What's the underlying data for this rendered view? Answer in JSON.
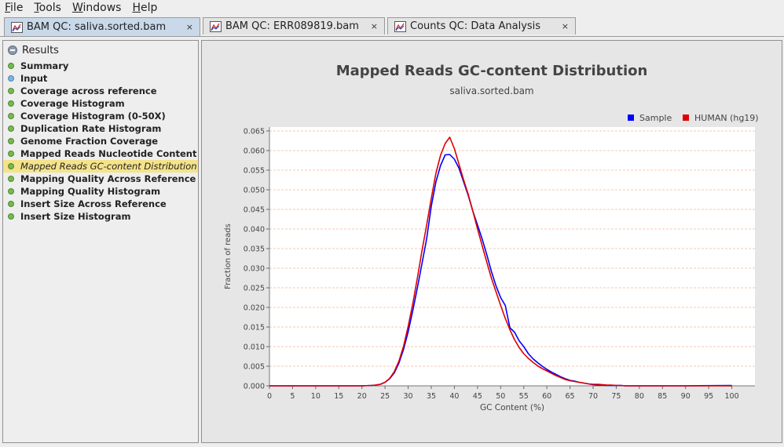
{
  "menu": [
    {
      "mnemonic": "F",
      "rest": "ile"
    },
    {
      "mnemonic": "T",
      "rest": "ools"
    },
    {
      "mnemonic": "W",
      "rest": "indows"
    },
    {
      "mnemonic": "H",
      "rest": "elp"
    }
  ],
  "tabs": [
    {
      "label": "BAM QC: saliva.sorted.bam",
      "close": "×"
    },
    {
      "label": "BAM QC: ERR089819.bam",
      "close": "×"
    },
    {
      "label": "Counts QC: Data Analysis",
      "close": "×"
    }
  ],
  "sidebar": {
    "header": "Results",
    "items": [
      {
        "label": "Summary"
      },
      {
        "label": "Input"
      },
      {
        "label": "Coverage across reference"
      },
      {
        "label": "Coverage Histogram"
      },
      {
        "label": "Coverage Histogram (0-50X)"
      },
      {
        "label": "Duplication Rate Histogram"
      },
      {
        "label": "Genome Fraction Coverage"
      },
      {
        "label": "Mapped Reads Nucleotide Content"
      },
      {
        "label": "Mapped Reads GC-content Distribution"
      },
      {
        "label": "Mapping Quality Across Reference"
      },
      {
        "label": "Mapping Quality Histogram"
      },
      {
        "label": "Insert Size Across Reference"
      },
      {
        "label": "Insert Size Histogram"
      }
    ]
  },
  "chart_data": {
    "type": "line",
    "title": "Mapped Reads GC-content Distribution",
    "subtitle": "saliva.sorted.bam",
    "xlabel": "GC Content (%)",
    "ylabel": "Fraction of reads",
    "xlim": [
      0,
      105
    ],
    "ylim": [
      0,
      0.066
    ],
    "xticks": [
      0,
      5,
      10,
      15,
      20,
      25,
      30,
      35,
      40,
      45,
      50,
      55,
      60,
      65,
      70,
      75,
      80,
      85,
      90,
      95,
      100
    ],
    "yticks": [
      0.0,
      0.005,
      0.01,
      0.015,
      0.02,
      0.025,
      0.03,
      0.035,
      0.04,
      0.045,
      0.05,
      0.055,
      0.06,
      0.065
    ],
    "grid": true,
    "legend_position": "top-right",
    "series": [
      {
        "name": "Sample",
        "color": "#0000ff",
        "x": [
          0,
          10,
          20,
          22,
          23,
          24,
          25,
          26,
          27,
          28,
          29,
          30,
          31,
          32,
          33,
          34,
          35,
          36,
          37,
          38,
          39,
          40,
          41,
          42,
          43,
          44,
          45,
          46,
          47,
          48,
          49,
          50,
          51,
          52,
          53,
          54,
          55,
          56,
          57,
          58,
          59,
          60,
          61,
          62,
          63,
          64,
          65,
          66,
          67,
          68,
          69,
          70,
          71,
          72,
          73,
          74,
          75,
          76,
          77,
          78,
          80,
          90,
          100
        ],
        "y": [
          0,
          0,
          0,
          0.0001,
          0.0002,
          0.0004,
          0.0009,
          0.0018,
          0.0033,
          0.0058,
          0.0093,
          0.0138,
          0.0192,
          0.025,
          0.0312,
          0.0375,
          0.0458,
          0.052,
          0.0562,
          0.0589,
          0.059,
          0.0578,
          0.0555,
          0.052,
          0.0485,
          0.0445,
          0.041,
          0.0375,
          0.0335,
          0.0292,
          0.0255,
          0.0225,
          0.0205,
          0.0148,
          0.0137,
          0.0115,
          0.01,
          0.0082,
          0.0069,
          0.0059,
          0.005,
          0.0042,
          0.0035,
          0.0029,
          0.0023,
          0.0018,
          0.0014,
          0.0012,
          0.0009,
          0.0007,
          0.0005,
          0.0003,
          0.0002,
          0.0002,
          0.0001,
          0.0001,
          0.0001,
          0.0001,
          0,
          0,
          0,
          0,
          0.0001
        ]
      },
      {
        "name": "HUMAN (hg19)",
        "color": "#dd0000",
        "x": [
          0,
          10,
          20,
          22,
          23,
          24,
          25,
          26,
          27,
          28,
          29,
          30,
          31,
          32,
          33,
          34,
          35,
          36,
          37,
          38,
          39,
          40,
          41,
          42,
          43,
          44,
          45,
          46,
          47,
          48,
          49,
          50,
          51,
          52,
          53,
          54,
          55,
          56,
          57,
          58,
          59,
          60,
          61,
          62,
          63,
          64,
          65,
          66,
          67,
          68,
          69,
          70,
          71,
          72,
          73,
          74,
          75,
          76,
          77,
          78,
          80,
          90,
          100
        ],
        "y": [
          0,
          0,
          0,
          0.0001,
          0.0002,
          0.0004,
          0.0009,
          0.0019,
          0.0036,
          0.0063,
          0.0101,
          0.0152,
          0.021,
          0.0275,
          0.0345,
          0.041,
          0.0478,
          0.0542,
          0.0588,
          0.0618,
          0.0634,
          0.0605,
          0.0565,
          0.0525,
          0.0488,
          0.0445,
          0.04,
          0.0358,
          0.0316,
          0.0275,
          0.024,
          0.0205,
          0.0172,
          0.0143,
          0.0118,
          0.0098,
          0.0082,
          0.007,
          0.006,
          0.0051,
          0.0044,
          0.0038,
          0.0032,
          0.0026,
          0.0021,
          0.0016,
          0.0013,
          0.0011,
          0.0009,
          0.0007,
          0.0005,
          0.0004,
          0.0004,
          0.0003,
          0.0002,
          0.0002,
          0.0001,
          0.0001,
          0,
          0,
          0,
          0,
          0
        ]
      }
    ]
  }
}
